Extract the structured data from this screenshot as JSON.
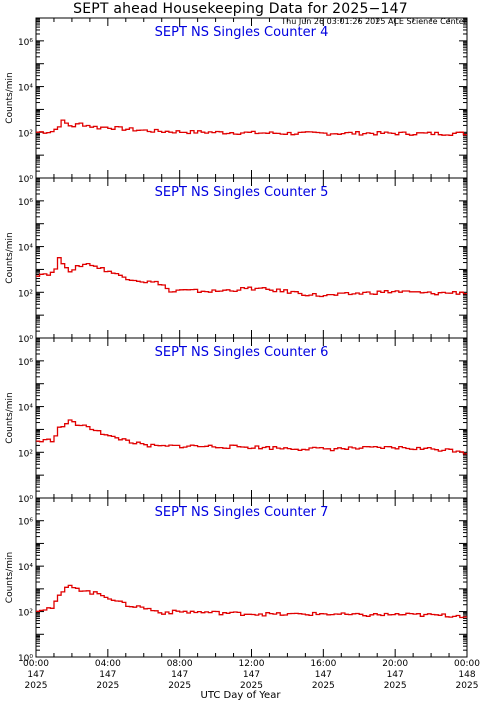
{
  "header": {
    "title": "SEPT ahead Housekeeping Data for 2025−147",
    "timestamp": "Thu Jun 26 03:01:26 2025 ACE Science Center"
  },
  "axes": {
    "ylabel": "Counts/min",
    "xlabel": "UTC Day of Year"
  },
  "colors": {
    "series": "#e00000",
    "panel_title": "#0000e0",
    "frame": "#000000"
  },
  "chart_data": [
    {
      "type": "line",
      "title": "SEPT NS Singles Counter 4",
      "y_scale": "log",
      "ylim": [
        1,
        10000000
      ],
      "yticks": [
        "10⁰",
        "10²",
        "10⁴",
        "10⁶"
      ],
      "x_hours": [
        0,
        1,
        1.5,
        2,
        2.5,
        3,
        3.5,
        4,
        5,
        6,
        7,
        8,
        10,
        12,
        14,
        16,
        18,
        20,
        22,
        24
      ],
      "values": [
        100,
        110,
        300,
        180,
        240,
        190,
        160,
        170,
        140,
        120,
        110,
        105,
        100,
        95,
        90,
        90,
        92,
        90,
        88,
        90
      ]
    },
    {
      "type": "line",
      "title": "SEPT NS Singles Counter 5",
      "y_scale": "log",
      "ylim": [
        1,
        10000000
      ],
      "yticks": [
        "10⁰",
        "10²",
        "10⁴",
        "10⁶"
      ],
      "x_hours": [
        0,
        1,
        1.3,
        1.6,
        2,
        2.4,
        3,
        3.5,
        4,
        4.5,
        5,
        6,
        7,
        7.5,
        8,
        10,
        12,
        14,
        15,
        16,
        18,
        20,
        22,
        24
      ],
      "values": [
        600,
        700,
        2800,
        1800,
        700,
        1500,
        1800,
        1200,
        900,
        600,
        450,
        300,
        250,
        100,
        120,
        110,
        150,
        110,
        85,
        70,
        90,
        110,
        90,
        100
      ]
    },
    {
      "type": "line",
      "title": "SEPT NS Singles Counter 6",
      "y_scale": "log",
      "ylim": [
        1,
        10000000
      ],
      "yticks": [
        "10⁰",
        "10²",
        "10⁴",
        "10⁶"
      ],
      "x_hours": [
        0,
        1,
        1.2,
        1.6,
        2,
        2.4,
        3,
        3.5,
        4,
        5,
        6,
        7,
        8,
        10,
        12,
        14,
        16,
        18,
        20,
        22,
        23.6,
        24
      ],
      "values": [
        300,
        350,
        1000,
        1600,
        2500,
        1500,
        1200,
        900,
        500,
        350,
        200,
        180,
        190,
        180,
        170,
        150,
        140,
        150,
        160,
        140,
        120,
        90
      ]
    },
    {
      "type": "line",
      "title": "SEPT NS Singles Counter 7",
      "y_scale": "log",
      "ylim": [
        1,
        10000000
      ],
      "yticks": [
        "10⁰",
        "10²",
        "10⁴",
        "10⁶"
      ],
      "x_hours": [
        0,
        1,
        1.2,
        1.6,
        2,
        2.4,
        3,
        3.5,
        4,
        5,
        6,
        7,
        8,
        10,
        12,
        14,
        16,
        18,
        20,
        22,
        24
      ],
      "values": [
        120,
        150,
        400,
        900,
        1500,
        1000,
        700,
        600,
        450,
        200,
        150,
        90,
        100,
        90,
        80,
        75,
        80,
        70,
        75,
        70,
        65
      ]
    }
  ],
  "xticks": [
    {
      "time": "00:00",
      "day": "147",
      "year": "2025"
    },
    {
      "time": "04:00",
      "day": "147",
      "year": "2025"
    },
    {
      "time": "08:00",
      "day": "147",
      "year": "2025"
    },
    {
      "time": "12:00",
      "day": "147",
      "year": "2025"
    },
    {
      "time": "16:00",
      "day": "147",
      "year": "2025"
    },
    {
      "time": "20:00",
      "day": "147",
      "year": "2025"
    },
    {
      "time": "00:00",
      "day": "148",
      "year": "2025"
    }
  ]
}
